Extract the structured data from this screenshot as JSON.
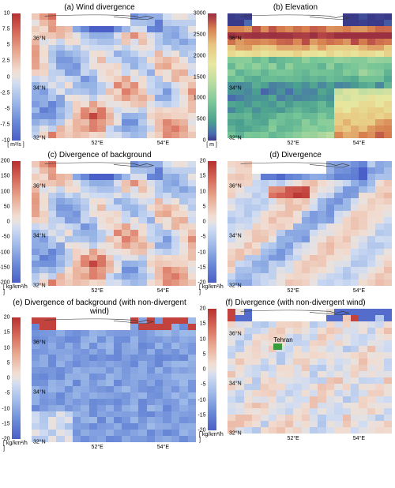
{
  "global": {
    "lat_range": [
      32,
      37
    ],
    "lon_range": [
      50,
      55
    ],
    "ylabels": [
      {
        "v": 36,
        "t": "36°N"
      },
      {
        "v": 34,
        "t": "34°N"
      },
      {
        "v": 32,
        "t": "32°N"
      }
    ],
    "xlabels": [
      {
        "v": 52,
        "t": "52°E"
      },
      {
        "v": 54,
        "t": "54°E"
      }
    ],
    "grid_n": 20
  },
  "panels": [
    {
      "id": "a",
      "title": "(a) Wind divergence",
      "unit": "[ m²/s ]",
      "cmap": "rb",
      "vmin": -10,
      "vmax": 10,
      "ticks": [
        10,
        7.5,
        5,
        2.5,
        0,
        -2.5,
        -5,
        -7.5,
        -10
      ],
      "pattern": "wind"
    },
    {
      "id": "b",
      "title": "(b) Elevation",
      "unit": "[ m ]",
      "cmap": "terrain",
      "vmin": 0,
      "vmax": 3000,
      "ticks": [
        3000,
        2500,
        2000,
        1500,
        1000,
        500,
        0
      ],
      "pattern": "elev"
    },
    {
      "id": "c",
      "title": "(c) Divergence of background",
      "unit": "[ kg/km²/h ]",
      "cmap": "rb",
      "vmin": -200,
      "vmax": 200,
      "ticks": [
        200,
        150,
        100,
        50,
        0,
        -50,
        -100,
        -150,
        -200
      ],
      "pattern": "wind"
    },
    {
      "id": "d",
      "title": "(d) Divergence",
      "unit": "[ kg/km²/h ]",
      "cmap": "rb",
      "vmin": -20,
      "vmax": 20,
      "ticks": [
        20,
        15,
        10,
        5,
        0,
        -5,
        -10,
        -15,
        -20
      ],
      "pattern": "div"
    },
    {
      "id": "e",
      "title": "(e) Divergence of background (with non-divergent wind)",
      "unit": "[ kg/km²/h ]",
      "cmap": "rb",
      "vmin": -20,
      "vmax": 20,
      "ticks": [
        20,
        15,
        10,
        5,
        0,
        -5,
        -10,
        -15,
        -20
      ],
      "pattern": "nondivbg"
    },
    {
      "id": "f",
      "title": "(f) Divergence (with non-divergent wind)",
      "unit": "[ kg/km²/h ]",
      "cmap": "rb",
      "vmin": -20,
      "vmax": 20,
      "ticks": [
        20,
        15,
        10,
        5,
        0,
        -5,
        -10,
        -15,
        -20
      ],
      "pattern": "nondiv",
      "label": {
        "text": "Tehran",
        "lat": 35.7,
        "lon": 51.4,
        "marker": "#3a9b3a"
      }
    }
  ],
  "cmaps": {
    "rb": [
      [
        0,
        "#4a5fc7"
      ],
      [
        0.15,
        "#6a8ad8"
      ],
      [
        0.3,
        "#9cb8e8"
      ],
      [
        0.45,
        "#d0dcf2"
      ],
      [
        0.5,
        "#e8e2e0"
      ],
      [
        0.55,
        "#f2dcd0"
      ],
      [
        0.7,
        "#e8a890"
      ],
      [
        0.85,
        "#d86a5a"
      ],
      [
        1,
        "#b73030"
      ]
    ],
    "terrain": [
      [
        0,
        "#3a3a8a"
      ],
      [
        0.05,
        "#4a6ab0"
      ],
      [
        0.15,
        "#4aa090"
      ],
      [
        0.3,
        "#7ac898"
      ],
      [
        0.45,
        "#b8dca0"
      ],
      [
        0.6,
        "#e8e8a0"
      ],
      [
        0.75,
        "#e8c880"
      ],
      [
        0.88,
        "#d88050"
      ],
      [
        0.95,
        "#b84848"
      ],
      [
        1,
        "#9a3040"
      ]
    ]
  },
  "seeds": {
    "wind": 13,
    "elev": 7,
    "div": 19,
    "nondivbg": 23,
    "nondiv": 31
  }
}
